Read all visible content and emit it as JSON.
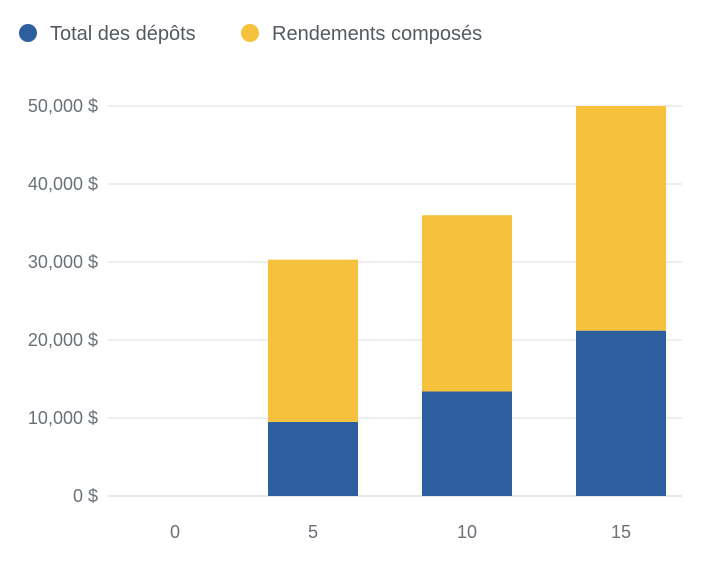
{
  "chart_data": {
    "type": "bar",
    "stacked": true,
    "categories": [
      "0",
      "5",
      "10",
      "15"
    ],
    "series": [
      {
        "name": "Total des dépôts",
        "color": "#2d5f9e",
        "values": [
          0,
          9500,
          13400,
          21200
        ]
      },
      {
        "name": "Rendements composés",
        "color": "#f6c23e",
        "values": [
          0,
          20800,
          22600,
          28800
        ]
      }
    ],
    "ylim": [
      0,
      50000
    ],
    "yticks": [
      0,
      10000,
      20000,
      30000,
      40000,
      50000
    ],
    "ytick_labels": [
      "0 $",
      "10,000 $",
      "20,000 $",
      "30,000 $",
      "40,000 $",
      "50,000 $"
    ],
    "title": "",
    "xlabel": "",
    "ylabel": "",
    "grid": true,
    "legend_position": "top-left"
  }
}
